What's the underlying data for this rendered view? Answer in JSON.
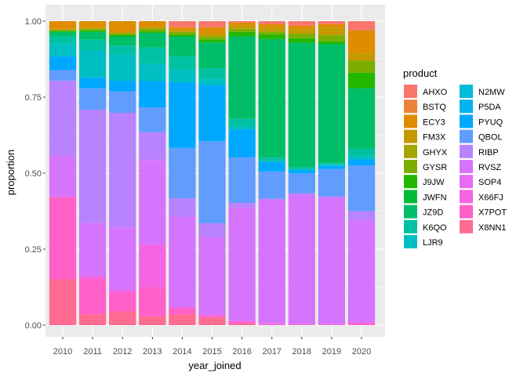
{
  "chart_data": {
    "type": "bar",
    "stacked": true,
    "xlabel": "year_joined",
    "ylabel": "proportion",
    "ylim": [
      0,
      1.0
    ],
    "yticks": [
      0.0,
      0.25,
      0.5,
      0.75,
      1.0
    ],
    "ytick_labels": [
      "0.00",
      "0.25",
      "0.50",
      "0.75",
      "1.00"
    ],
    "grid": true,
    "legend_title": "product",
    "legend_position": "right",
    "categories": [
      "2010",
      "2011",
      "2012",
      "2013",
      "2014",
      "2015",
      "2016",
      "2017",
      "2018",
      "2019",
      "2020"
    ],
    "series": [
      {
        "name": "X8NN1",
        "color": "#FF6C91",
        "values": [
          0.15,
          0.035,
          0.045,
          0.03,
          0.035,
          0.025,
          0.005,
          0.0,
          0.0,
          0.0,
          0.0
        ]
      },
      {
        "name": "X7POT",
        "color": "#FF61C9",
        "values": [
          0.27,
          0.115,
          0.06,
          0.1,
          0.02,
          0.005,
          0.005,
          0.003,
          0.002,
          0.002,
          0.005
        ]
      },
      {
        "name": "X66FJ",
        "color": "#F564E3",
        "values": [
          0.0,
          0.01,
          0.01,
          0.145,
          0.005,
          0.005,
          0.005,
          0.003,
          0.002,
          0.002,
          0.005
        ]
      },
      {
        "name": "SOP4",
        "color": "#E76BF3",
        "values": [
          0.0,
          0.0,
          0.0,
          0.0,
          0.0,
          0.0,
          0.0,
          0.0,
          0.0,
          0.0,
          0.0
        ]
      },
      {
        "name": "RVSZ",
        "color": "#D575FE",
        "values": [
          0.135,
          0.175,
          0.205,
          0.29,
          0.295,
          0.255,
          0.37,
          0.405,
          0.425,
          0.415,
          0.335
        ]
      },
      {
        "name": "RIBP",
        "color": "#B983FF",
        "values": [
          0.245,
          0.37,
          0.375,
          0.095,
          0.06,
          0.045,
          0.015,
          0.005,
          0.005,
          0.005,
          0.03
        ]
      },
      {
        "name": "QBOL",
        "color": "#619CFF",
        "values": [
          0.035,
          0.07,
          0.07,
          0.085,
          0.165,
          0.27,
          0.15,
          0.09,
          0.065,
          0.09,
          0.15
        ]
      },
      {
        "name": "PYUQ",
        "color": "#00A9FF",
        "values": [
          0.045,
          0.035,
          0.035,
          0.09,
          0.215,
          0.185,
          0.09,
          0.03,
          0.01,
          0.01,
          0.02
        ]
      },
      {
        "name": "P5DA",
        "color": "#00B4EF",
        "values": [
          0.0,
          0.0,
          0.0,
          0.0,
          0.0,
          0.0,
          0.0,
          0.0,
          0.0,
          0.0,
          0.0
        ]
      },
      {
        "name": "N2MW",
        "color": "#00BCD8",
        "values": [
          0.0,
          0.0,
          0.0,
          0.0,
          0.0,
          0.0,
          0.0,
          0.0,
          0.0,
          0.0,
          0.0
        ]
      },
      {
        "name": "LJR9",
        "color": "#00BFC4",
        "values": [
          0.04,
          0.09,
          0.085,
          0.06,
          0.04,
          0.02,
          0.01,
          0.005,
          0.005,
          0.005,
          0.01
        ]
      },
      {
        "name": "K6QO",
        "color": "#00C1A3",
        "values": [
          0.025,
          0.035,
          0.03,
          0.055,
          0.045,
          0.035,
          0.025,
          0.01,
          0.005,
          0.005,
          0.025
        ]
      },
      {
        "name": "JZ9D",
        "color": "#00BE67",
        "values": [
          0.015,
          0.025,
          0.03,
          0.05,
          0.065,
          0.085,
          0.27,
          0.39,
          0.41,
          0.39,
          0.2
        ]
      },
      {
        "name": "JWFN",
        "color": "#00BF7D",
        "values": [
          0.0,
          0.0,
          0.0,
          0.0,
          0.0,
          0.0,
          0.0,
          0.0,
          0.0,
          0.0,
          0.0
        ]
      },
      {
        "name": "J9JW",
        "color": "#24B700",
        "values": [
          0.003,
          0.005,
          0.005,
          0.005,
          0.005,
          0.01,
          0.015,
          0.015,
          0.015,
          0.01,
          0.05
        ]
      },
      {
        "name": "GYSR",
        "color": "#7CAE00",
        "values": [
          0.003,
          0.005,
          0.005,
          0.01,
          0.01,
          0.01,
          0.01,
          0.01,
          0.015,
          0.02,
          0.04
        ]
      },
      {
        "name": "GHYX",
        "color": "#A3A500",
        "values": [
          0.0,
          0.0,
          0.0,
          0.0,
          0.0,
          0.0,
          0.0,
          0.0,
          0.0,
          0.0,
          0.0
        ]
      },
      {
        "name": "FM3X",
        "color": "#C49A00",
        "values": [
          0.004,
          0.005,
          0.005,
          0.005,
          0.005,
          0.01,
          0.01,
          0.015,
          0.015,
          0.025,
          0.025
        ]
      },
      {
        "name": "ECY3",
        "color": "#DE8C00",
        "values": [
          0.025,
          0.02,
          0.035,
          0.02,
          0.01,
          0.02,
          0.01,
          0.009,
          0.011,
          0.011,
          0.075
        ]
      },
      {
        "name": "BSTQ",
        "color": "#F08C58",
        "values": [
          0.0,
          0.0,
          0.0,
          0.0,
          0.0,
          0.0,
          0.0,
          0.0,
          0.0,
          0.0,
          0.0
        ]
      },
      {
        "name": "AHXO",
        "color": "#F8766D",
        "values": [
          0.0,
          0.0,
          0.0,
          0.0,
          0.02,
          0.02,
          0.005,
          0.01,
          0.015,
          0.01,
          0.03
        ]
      }
    ],
    "legend": [
      [
        "AHXO",
        "#F8766D"
      ],
      [
        "BSTQ",
        "#EC8239"
      ],
      [
        "ECY3",
        "#DE8C00"
      ],
      [
        "FM3X",
        "#C49A00"
      ],
      [
        "GHYX",
        "#A3A500"
      ],
      [
        "GYSR",
        "#7CAE00"
      ],
      [
        "J9JW",
        "#24B700"
      ],
      [
        "JWFN",
        "#00BA38"
      ],
      [
        "JZ9D",
        "#00BE67"
      ],
      [
        "K6QO",
        "#00C1A3"
      ],
      [
        "LJR9",
        "#00BFC4"
      ],
      [
        "N2MW",
        "#00BCD8"
      ],
      [
        "P5DA",
        "#00B4EF"
      ],
      [
        "PYUQ",
        "#00A9FF"
      ],
      [
        "QBOL",
        "#619CFF"
      ],
      [
        "RIBP",
        "#B983FF"
      ],
      [
        "RVSZ",
        "#D575FE"
      ],
      [
        "SOP4",
        "#E76BF3"
      ],
      [
        "X66FJ",
        "#F564E3"
      ],
      [
        "X7POT",
        "#FF61C9"
      ],
      [
        "X8NN1",
        "#FF6C91"
      ]
    ]
  }
}
